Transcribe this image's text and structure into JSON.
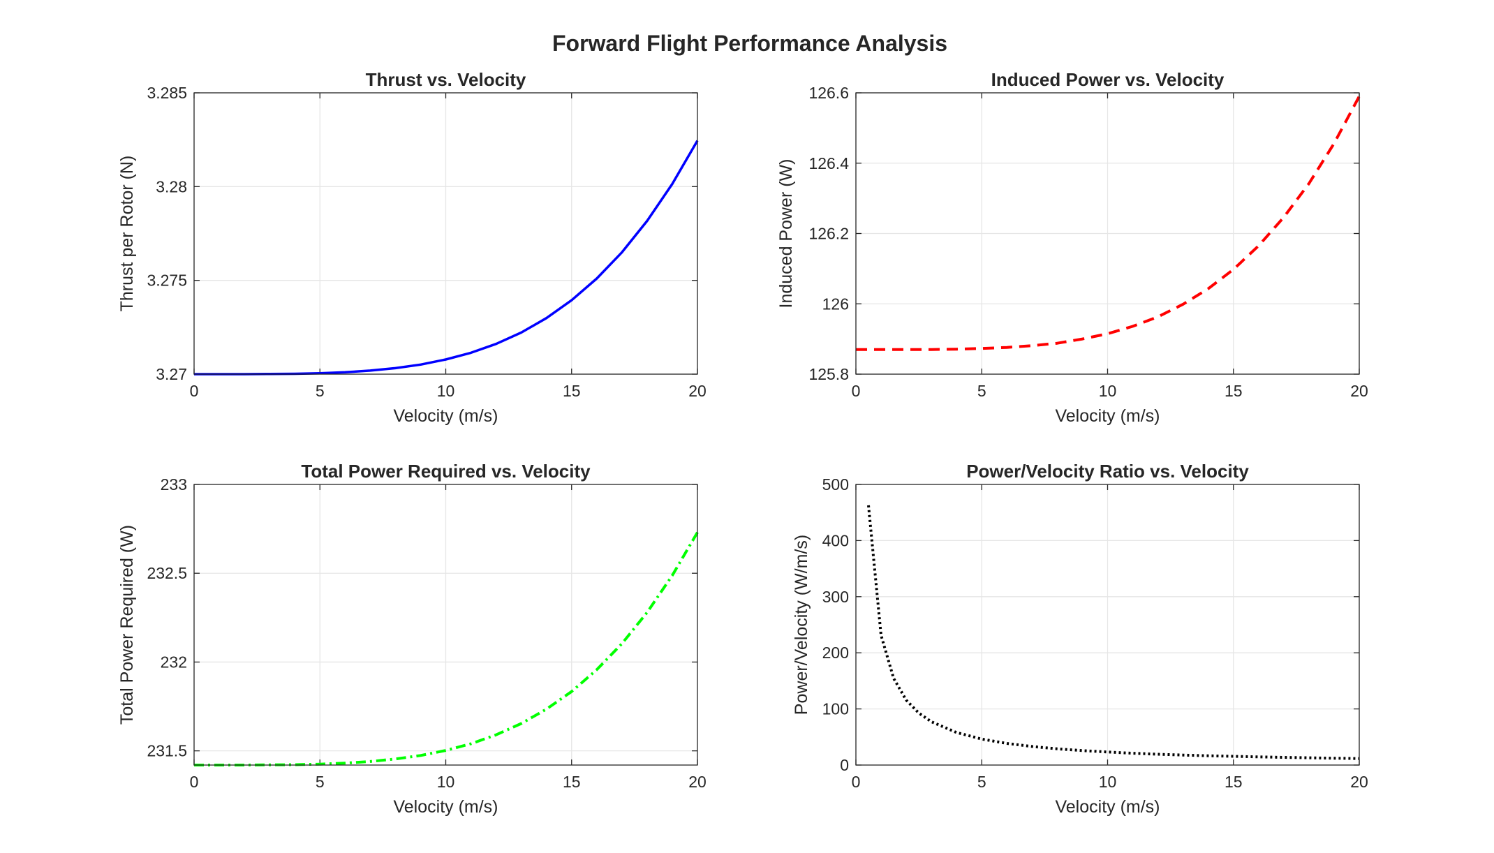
{
  "figure_title": "Forward Flight Performance Analysis",
  "chart_data": [
    {
      "type": "line",
      "title": "Thrust vs. Velocity",
      "xlabel": "Velocity (m/s)",
      "ylabel": "Thrust per Rotor (N)",
      "xlim": [
        0,
        20
      ],
      "ylim": [
        3.27,
        3.285
      ],
      "xticks": [
        "0",
        "5",
        "10",
        "15",
        "20"
      ],
      "yticks": [
        "3.27",
        "3.275",
        "3.28",
        "3.285"
      ],
      "grid": true,
      "line_color": "#0000ff",
      "line_style": "solid",
      "x": [
        0,
        1,
        2,
        3,
        4,
        5,
        6,
        7,
        8,
        9,
        10,
        11,
        12,
        13,
        14,
        15,
        16,
        17,
        18,
        19,
        20
      ],
      "y": [
        3.27,
        3.27,
        3.27,
        3.27001,
        3.27002,
        3.27005,
        3.2701,
        3.27019,
        3.27032,
        3.27051,
        3.27078,
        3.27114,
        3.27161,
        3.27222,
        3.27299,
        3.27394,
        3.2751,
        3.2765,
        3.27817,
        3.28014,
        3.28245
      ]
    },
    {
      "type": "line",
      "title": "Induced Power vs. Velocity",
      "xlabel": "Velocity (m/s)",
      "ylabel": "Induced Power (W)",
      "xlim": [
        0,
        20
      ],
      "ylim": [
        125.8,
        126.6
      ],
      "xticks": [
        "0",
        "5",
        "10",
        "15",
        "20"
      ],
      "yticks": [
        "125.8",
        "126",
        "126.2",
        "126.4",
        "126.6"
      ],
      "grid": true,
      "line_color": "#ff0000",
      "line_style": "dashed",
      "x": [
        0,
        1,
        2,
        3,
        4,
        5,
        6,
        7,
        8,
        9,
        10,
        11,
        12,
        13,
        14,
        15,
        16,
        17,
        18,
        19,
        20
      ],
      "y": [
        125.87,
        125.87,
        125.87,
        125.87,
        125.871,
        125.873,
        125.876,
        125.881,
        125.888,
        125.9,
        125.915,
        125.936,
        125.963,
        125.999,
        126.043,
        126.098,
        126.165,
        126.246,
        126.342,
        126.456,
        126.59
      ]
    },
    {
      "type": "line",
      "title": "Total Power Required vs. Velocity",
      "xlabel": "Velocity (m/s)",
      "ylabel": "Total Power Required (W)",
      "xlim": [
        0,
        20
      ],
      "ylim": [
        231.42,
        233
      ],
      "xticks": [
        "0",
        "5",
        "10",
        "15",
        "20"
      ],
      "yticks": [
        "231.5",
        "232",
        "232.5",
        "233"
      ],
      "ytick_values": [
        231.5,
        232,
        232.5,
        233
      ],
      "grid": true,
      "line_color": "#00ff00",
      "line_style": "dash-dot",
      "x": [
        0,
        1,
        2,
        3,
        4,
        5,
        6,
        7,
        8,
        9,
        10,
        11,
        12,
        13,
        14,
        15,
        16,
        17,
        18,
        19,
        20
      ],
      "y": [
        231.42,
        231.42,
        231.42,
        231.421,
        231.422,
        231.425,
        231.431,
        231.44,
        231.454,
        231.474,
        231.502,
        231.54,
        231.59,
        231.654,
        231.735,
        231.834,
        231.957,
        232.104,
        232.279,
        232.487,
        232.73
      ]
    },
    {
      "type": "line",
      "title": "Power/Velocity Ratio vs. Velocity",
      "xlabel": "Velocity (m/s)",
      "ylabel": "Power/Velocity (W/m/s)",
      "xlim": [
        0,
        20
      ],
      "ylim": [
        0,
        500
      ],
      "xticks": [
        "0",
        "5",
        "10",
        "15",
        "20"
      ],
      "yticks": [
        "0",
        "100",
        "200",
        "300",
        "400",
        "500"
      ],
      "grid": true,
      "line_color": "#000000",
      "line_style": "dotted",
      "x": [
        0.5,
        1,
        1.5,
        2,
        2.5,
        3,
        4,
        5,
        6,
        7,
        8,
        9,
        10,
        11,
        12,
        13,
        14,
        15,
        16,
        17,
        18,
        19,
        20
      ],
      "y": [
        462.8,
        231.4,
        154.3,
        115.7,
        92.6,
        77.1,
        57.9,
        46.3,
        38.6,
        33.1,
        28.9,
        25.7,
        23.2,
        21.0,
        19.3,
        17.8,
        16.6,
        15.5,
        14.5,
        13.7,
        12.9,
        12.2,
        11.6
      ]
    }
  ]
}
